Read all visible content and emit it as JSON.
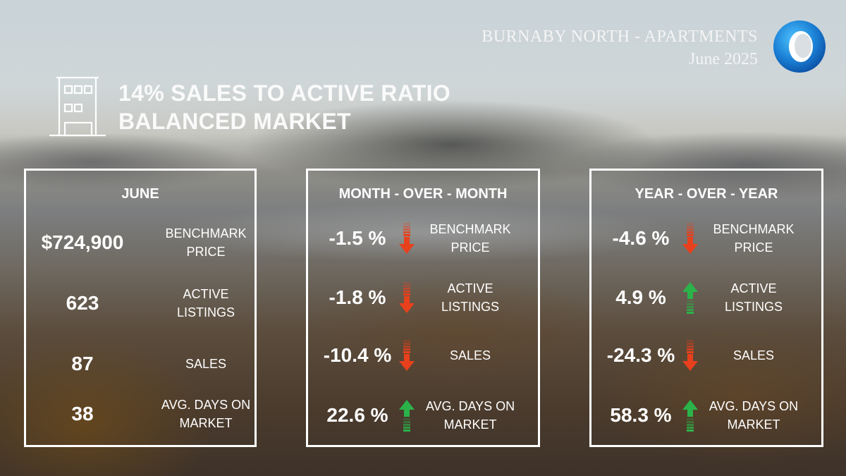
{
  "header": {
    "title": "BURNABY NORTH - APARTMENTS",
    "subtitle": "June 2025"
  },
  "headline": {
    "line1": "14% SALES TO ACTIVE RATIO",
    "line2": "BALANCED MARKET"
  },
  "icons": {
    "logo": "circular-ring-logo-icon",
    "building": "building-icon",
    "up": "green-up-arrow-icon",
    "down": "red-down-arrow-icon"
  },
  "colors": {
    "up": "#2bb34a",
    "down": "#e8401c",
    "text": "#ffffff"
  },
  "june": {
    "heading": "JUNE",
    "rows": [
      {
        "value": "$724,900",
        "label": "BENCHMARK PRICE"
      },
      {
        "value": "623",
        "label": "ACTIVE LISTINGS"
      },
      {
        "value": "87",
        "label": "SALES"
      },
      {
        "value": "38",
        "label": "AVG. DAYS ON MARKET"
      }
    ]
  },
  "month_over_month": {
    "heading": "MONTH - OVER - MONTH",
    "rows": [
      {
        "value": "-1.5 %",
        "direction": "down",
        "label": "BENCHMARK PRICE"
      },
      {
        "value": "-1.8 %",
        "direction": "down",
        "label": "ACTIVE LISTINGS"
      },
      {
        "value": "-10.4 %",
        "direction": "down",
        "label": "SALES"
      },
      {
        "value": "22.6 %",
        "direction": "up",
        "label": "AVG. DAYS ON MARKET"
      }
    ]
  },
  "year_over_year": {
    "heading": "YEAR - OVER - YEAR",
    "rows": [
      {
        "value": "-4.6 %",
        "direction": "down",
        "label": "BENCHMARK PRICE"
      },
      {
        "value": "4.9 %",
        "direction": "up",
        "label": "ACTIVE LISTINGS"
      },
      {
        "value": "-24.3 %",
        "direction": "down",
        "label": "SALES"
      },
      {
        "value": "58.3 %",
        "direction": "up",
        "label": "AVG. DAYS ON MARKET"
      }
    ]
  }
}
